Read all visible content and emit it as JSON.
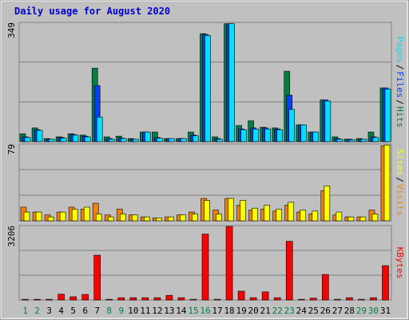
{
  "chart_data": [
    {
      "type": "bar",
      "title": "Daily usage for August 2020",
      "ylim": [
        0,
        349
      ],
      "yticks": [
        349
      ],
      "legend_separator": "/",
      "series": [
        {
          "name": "Hits",
          "color": "#008040",
          "values": [
            23,
            40,
            9,
            14,
            23,
            19,
            215,
            14,
            16,
            9,
            28,
            28,
            9,
            9,
            28,
            316,
            14,
            345,
            47,
            61,
            42,
            40,
            206,
            49,
            28,
            122,
            14,
            7,
            9,
            28,
            157
          ]
        },
        {
          "name": "Files",
          "color": "#0040ff",
          "values": [
            14,
            35,
            7,
            12,
            21,
            16,
            164,
            9,
            10,
            7,
            28,
            12,
            9,
            9,
            19,
            314,
            9,
            345,
            37,
            40,
            40,
            37,
            136,
            49,
            28,
            122,
            9,
            7,
            7,
            14,
            157
          ]
        },
        {
          "name": "Pages",
          "color": "#00e0ff",
          "values": [
            12,
            33,
            7,
            10,
            19,
            14,
            72,
            7,
            9,
            7,
            28,
            10,
            9,
            9,
            17,
            311,
            7,
            345,
            35,
            37,
            37,
            35,
            94,
            49,
            28,
            119,
            7,
            5,
            7,
            12,
            154
          ]
        }
      ]
    },
    {
      "type": "bar",
      "ylim": [
        0,
        79
      ],
      "yticks": [
        79
      ],
      "legend_separator": "/",
      "series": [
        {
          "name": "Visits",
          "color": "#ff8000",
          "values": [
            14,
            9,
            6,
            9,
            14,
            12,
            18,
            6,
            12,
            6,
            4,
            3,
            4,
            6,
            9,
            23,
            11,
            23,
            16,
            11,
            12,
            10,
            16,
            9,
            7,
            31,
            6,
            4,
            4,
            11,
            77
          ]
        },
        {
          "name": "Sites",
          "color": "#ffff00",
          "values": [
            9,
            9,
            4,
            9,
            12,
            14,
            7,
            4,
            7,
            6,
            4,
            3,
            4,
            6,
            7,
            21,
            7,
            23,
            21,
            13,
            16,
            12,
            19,
            11,
            10,
            36,
            9,
            4,
            4,
            7,
            78
          ]
        }
      ]
    },
    {
      "type": "bar",
      "ylim": [
        0,
        3206
      ],
      "yticks": [
        3206
      ],
      "categories": [
        "1",
        "2",
        "3",
        "4",
        "5",
        "6",
        "7",
        "8",
        "9",
        "10",
        "11",
        "12",
        "13",
        "14",
        "15",
        "16",
        "17",
        "18",
        "19",
        "20",
        "21",
        "22",
        "23",
        "24",
        "25",
        "26",
        "27",
        "28",
        "29",
        "30",
        "31"
      ],
      "category_colors": [
        "#008040",
        "#008040",
        "#000000",
        "#000000",
        "#000000",
        "#000000",
        "#000000",
        "#008040",
        "#008040",
        "#000000",
        "#000000",
        "#000000",
        "#000000",
        "#000000",
        "#008040",
        "#008040",
        "#000000",
        "#000000",
        "#000000",
        "#000000",
        "#000000",
        "#008040",
        "#008040",
        "#000000",
        "#000000",
        "#000000",
        "#000000",
        "#000000",
        "#008040",
        "#008040",
        "#000000"
      ],
      "series": [
        {
          "name": "KBytes",
          "color": "#ff0000",
          "values": [
            30,
            30,
            30,
            250,
            140,
            240,
            1930,
            30,
            100,
            100,
            100,
            100,
            200,
            100,
            30,
            2840,
            30,
            3170,
            380,
            100,
            350,
            100,
            2530,
            30,
            80,
            1100,
            30,
            100,
            30,
            100,
            1480
          ]
        }
      ]
    }
  ]
}
